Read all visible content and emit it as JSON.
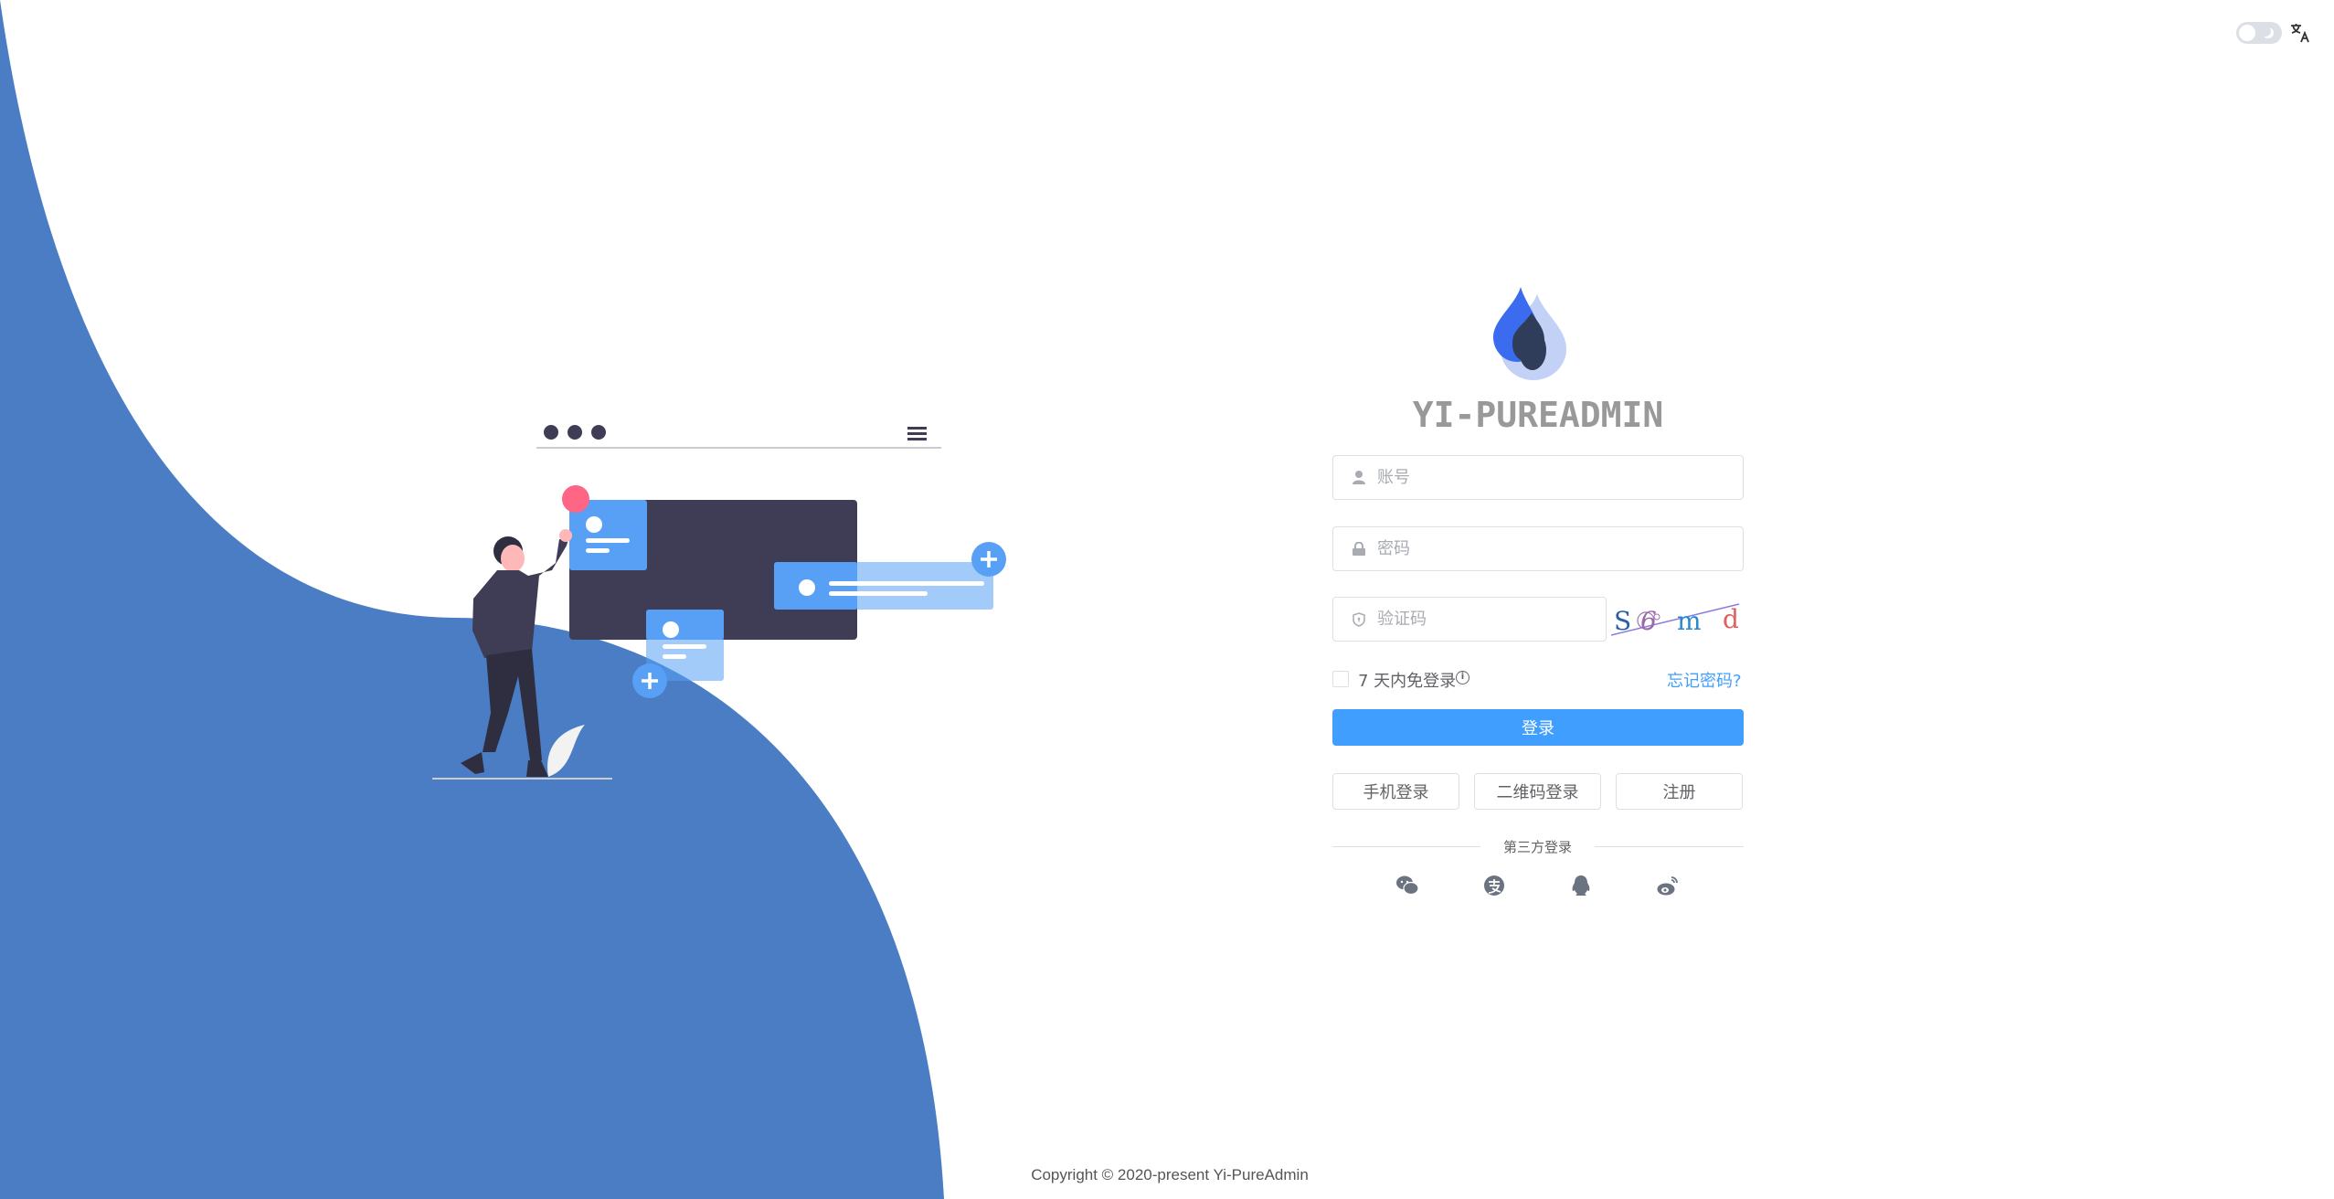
{
  "header": {
    "theme_toggle": "dark-mode-switch",
    "theme_icon": "moon-icon",
    "language_icon": "translate-icon"
  },
  "brand": {
    "title": "YI-PUREADMIN",
    "logo": "water-drop-logo"
  },
  "form": {
    "username_placeholder": "账号",
    "password_placeholder": "密码",
    "captcha_placeholder": "验证码",
    "captcha_chars": [
      "S",
      "6",
      "m",
      "d"
    ],
    "remember_label": "7 天内免登录",
    "forgot_label": "忘记密码?",
    "login_label": "登录",
    "phone_login_label": "手机登录",
    "qr_login_label": "二维码登录",
    "register_label": "注册",
    "third_party_label": "第三方登录",
    "third_party": [
      "wechat-icon",
      "alipay-icon",
      "qq-icon",
      "weibo-icon"
    ]
  },
  "footer": {
    "copyright": "Copyright © 2020-present Yi-PureAdmin"
  },
  "colors": {
    "primary": "#409eff",
    "wave": "#4a7dc4",
    "dark": "#3f3d56",
    "card": "#58a0f5"
  }
}
